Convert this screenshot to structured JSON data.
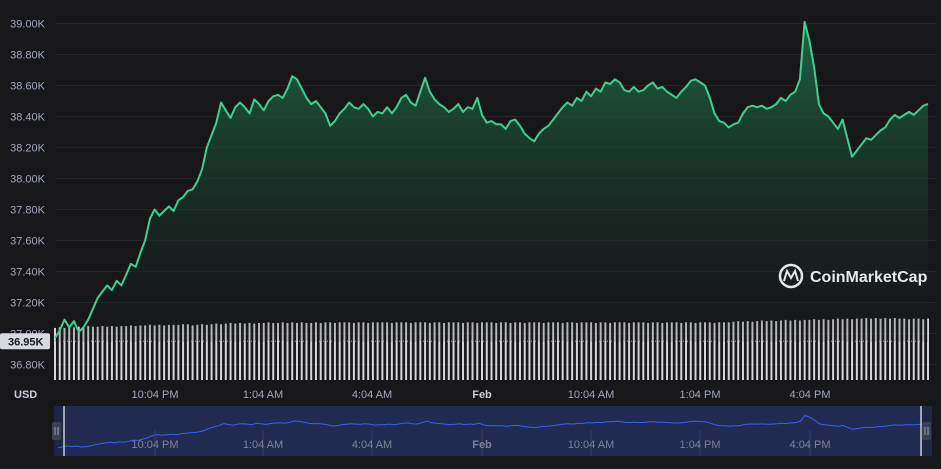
{
  "chart_data": {
    "type": "area",
    "currency_label": "USD",
    "y_ticks": [
      "39.00K",
      "38.80K",
      "38.60K",
      "38.40K",
      "38.20K",
      "38.00K",
      "37.80K",
      "37.60K",
      "37.40K",
      "37.20K",
      "37.00K",
      "36.80K"
    ],
    "ylim": [
      36700,
      39100
    ],
    "x_ticks": [
      "10:04 PM",
      "1:04 AM",
      "4:04 AM",
      "Feb",
      "10:04 AM",
      "1:04 PM",
      "4:04 PM"
    ],
    "start_value_label": "36.95K",
    "start_value": 36950,
    "grid": true,
    "colors": {
      "line": "#3fcf8e",
      "area_top": "#1e5a3d",
      "navigator_line": "#3861fb",
      "volume": "#e8e8ec"
    },
    "series": [
      {
        "values": [
          36970,
          37020,
          37090,
          37040,
          37080,
          37010,
          37040,
          37090,
          37160,
          37230,
          37270,
          37310,
          37280,
          37340,
          37310,
          37380,
          37450,
          37430,
          37520,
          37600,
          37740,
          37800,
          37760,
          37790,
          37820,
          37790,
          37860,
          37880,
          37920,
          37930,
          37980,
          38060,
          38200,
          38280,
          38360,
          38490,
          38440,
          38390,
          38460,
          38490,
          38460,
          38420,
          38510,
          38480,
          38440,
          38500,
          38530,
          38540,
          38520,
          38580,
          38660,
          38640,
          38580,
          38520,
          38480,
          38500,
          38460,
          38420,
          38340,
          38370,
          38420,
          38450,
          38490,
          38460,
          38450,
          38480,
          38450,
          38400,
          38430,
          38420,
          38460,
          38420,
          38460,
          38520,
          38540,
          38490,
          38470,
          38560,
          38650,
          38560,
          38510,
          38480,
          38460,
          38430,
          38450,
          38480,
          38430,
          38460,
          38450,
          38520,
          38410,
          38360,
          38370,
          38350,
          38350,
          38320,
          38370,
          38380,
          38340,
          38290,
          38260,
          38240,
          38290,
          38320,
          38340,
          38380,
          38420,
          38460,
          38490,
          38470,
          38520,
          38500,
          38560,
          38530,
          38580,
          38560,
          38620,
          38610,
          38640,
          38620,
          38570,
          38560,
          38590,
          38560,
          38570,
          38600,
          38620,
          38580,
          38590,
          38560,
          38540,
          38520,
          38560,
          38590,
          38630,
          38640,
          38620,
          38600,
          38520,
          38420,
          38370,
          38360,
          38330,
          38350,
          38360,
          38420,
          38460,
          38470,
          38460,
          38470,
          38450,
          38460,
          38480,
          38520,
          38500,
          38540,
          38560,
          38640,
          39010,
          38890,
          38720,
          38480,
          38420,
          38400,
          38360,
          38320,
          38380,
          38260,
          38140,
          38180,
          38220,
          38260,
          38250,
          38280,
          38310,
          38330,
          38380,
          38410,
          38390,
          38410,
          38430,
          38410,
          38440,
          38470,
          38480
        ]
      }
    ],
    "volume": [
      0.84,
      0.85,
      0.84,
      0.86,
      0.85,
      0.86,
      0.85,
      0.87,
      0.86,
      0.86,
      0.87,
      0.86,
      0.87,
      0.86,
      0.87,
      0.87,
      0.88,
      0.87,
      0.88,
      0.88,
      0.89,
      0.88,
      0.89,
      0.88,
      0.89,
      0.89,
      0.89,
      0.9,
      0.9,
      0.88,
      0.89,
      0.9,
      0.89,
      0.9,
      0.91,
      0.9,
      0.91,
      0.92,
      0.91,
      0.92,
      0.91,
      0.92,
      0.91,
      0.92,
      0.92,
      0.93,
      0.92,
      0.92,
      0.93,
      0.92,
      0.93,
      0.92,
      0.93,
      0.92,
      0.92,
      0.93,
      0.92,
      0.93,
      0.93,
      0.92,
      0.93,
      0.93,
      0.93,
      0.92,
      0.93,
      0.93,
      0.92,
      0.93,
      0.93,
      0.93,
      0.93,
      0.92,
      0.93,
      0.93,
      0.93,
      0.92,
      0.93,
      0.93,
      0.93,
      0.92,
      0.93,
      0.93,
      0.92,
      0.93,
      0.93,
      0.93,
      0.92,
      0.93,
      0.93,
      0.92,
      0.93,
      0.93,
      0.93,
      0.92,
      0.93,
      0.93,
      0.92,
      0.93,
      0.93,
      0.92,
      0.93,
      0.93,
      0.93,
      0.92,
      0.93,
      0.93,
      0.93,
      0.92,
      0.93,
      0.93,
      0.92,
      0.93,
      0.93,
      0.93,
      0.92,
      0.93,
      0.93,
      0.92,
      0.93,
      0.93,
      0.93,
      0.92,
      0.93,
      0.93,
      0.93,
      0.92,
      0.93,
      0.93,
      0.92,
      0.93,
      0.93,
      0.93,
      0.92,
      0.93,
      0.93,
      0.92,
      0.93,
      0.93,
      0.93,
      0.92,
      0.93,
      0.93,
      0.93,
      0.94,
      0.95,
      0.94,
      0.95,
      0.94,
      0.95,
      0.96,
      0.95,
      0.96,
      0.95,
      0.96,
      0.97,
      0.96,
      0.97,
      0.96,
      0.97,
      0.97,
      0.98,
      0.97,
      0.98,
      0.97,
      0.98,
      0.99,
      0.98,
      0.99,
      0.98,
      0.99,
      0.99,
      1.0,
      0.99,
      1.0,
      0.99,
      1.0,
      0.99,
      1.0,
      0.99,
      0.99,
      0.98,
      0.99,
      0.99,
      0.98,
      0.99
    ],
    "watermark": "CoinMarketCap",
    "navigator": {
      "x_ticks": [
        "10:04 PM",
        "1:04 AM",
        "4:04 AM",
        "Feb",
        "10:04 AM",
        "1:04 PM",
        "4:04 PM"
      ]
    }
  }
}
